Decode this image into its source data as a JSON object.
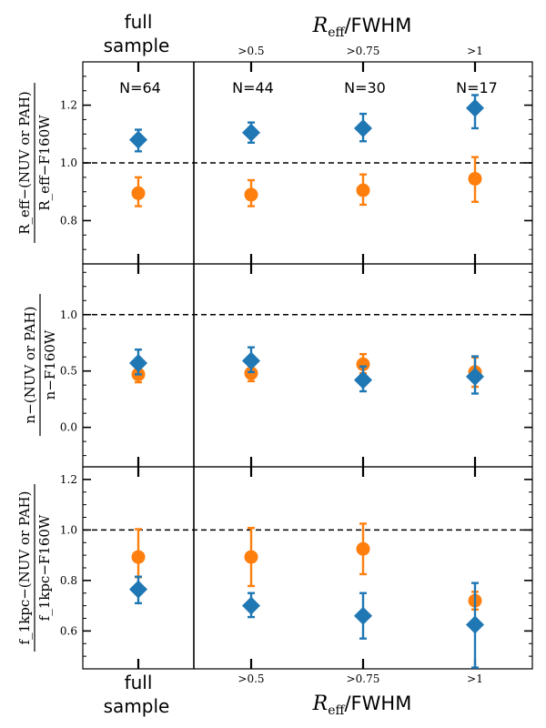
{
  "colors": {
    "blue": "#1f77b4",
    "orange": "#ff7f0e",
    "frame": "#000000"
  },
  "top_axis": {
    "column_label_line1": "full",
    "column_label_line2": "sample",
    "title_prefix": "R",
    "title_sub": "eff",
    "title_suffix": "/FWHM",
    "bins": [
      ">0.5",
      ">0.75",
      ">1"
    ]
  },
  "bottom_axis": {
    "column_label_line1": "full",
    "column_label_line2": "sample",
    "title_prefix": "R",
    "title_sub": "eff",
    "title_suffix": "/FWHM",
    "bins": [
      ">0.5",
      ">0.75",
      ">1"
    ]
  },
  "counts": [
    "N=64",
    "N=44",
    "N=30",
    "N=17"
  ],
  "chart_data": [
    {
      "type": "scatter",
      "panel": "top",
      "ylabel_numerator": "R_eff−(NUV or PAH)",
      "ylabel_denominator": "R_eff−F160W",
      "ylim": [
        0.65,
        1.35
      ],
      "yticks": [
        "0.8",
        "1.0",
        "1.2"
      ],
      "ytick_values": [
        0.8,
        1.0,
        1.2
      ],
      "reference_line": 1.0,
      "categories": [
        "full sample",
        ">0.5",
        ">0.75",
        ">1"
      ],
      "series": [
        {
          "name": "diamond",
          "color": "blue",
          "marker": "diamond",
          "values": [
            1.08,
            1.105,
            1.12,
            1.19
          ],
          "err_low": [
            0.04,
            0.035,
            0.045,
            0.07
          ],
          "err_high": [
            0.035,
            0.035,
            0.05,
            0.045
          ]
        },
        {
          "name": "circle",
          "color": "orange",
          "marker": "circle",
          "values": [
            0.895,
            0.89,
            0.905,
            0.945
          ],
          "err_low": [
            0.045,
            0.04,
            0.05,
            0.08
          ],
          "err_high": [
            0.055,
            0.05,
            0.055,
            0.075
          ]
        }
      ]
    },
    {
      "type": "scatter",
      "panel": "middle",
      "ylabel_numerator": "n−(NUV or PAH)",
      "ylabel_denominator": "n−F160W",
      "ylim": [
        -0.35,
        1.45
      ],
      "yticks": [
        "0.0",
        "0.5",
        "1.0"
      ],
      "ytick_values": [
        0.0,
        0.5,
        1.0
      ],
      "reference_line": 1.0,
      "categories": [
        "full sample",
        ">0.5",
        ">0.75",
        ">1"
      ],
      "series": [
        {
          "name": "diamond",
          "color": "blue",
          "marker": "diamond",
          "values": [
            0.57,
            0.59,
            0.42,
            0.45
          ],
          "err_low": [
            0.1,
            0.1,
            0.1,
            0.15
          ],
          "err_high": [
            0.12,
            0.12,
            0.12,
            0.18
          ]
        },
        {
          "name": "circle",
          "color": "orange",
          "marker": "circle",
          "values": [
            0.47,
            0.48,
            0.56,
            0.49
          ],
          "err_low": [
            0.07,
            0.07,
            0.08,
            0.13
          ],
          "err_high": [
            0.08,
            0.07,
            0.09,
            0.13
          ]
        }
      ]
    },
    {
      "type": "scatter",
      "panel": "bottom",
      "ylabel_numerator": "f_1kpc−(NUV or PAH)",
      "ylabel_denominator": "f_1kpc−F160W",
      "ylim": [
        0.45,
        1.25
      ],
      "yticks": [
        "0.6",
        "0.8",
        "1.0",
        "1.2"
      ],
      "ytick_values": [
        0.6,
        0.8,
        1.0,
        1.2
      ],
      "reference_line": 1.0,
      "categories": [
        "full sample",
        ">0.5",
        ">0.75",
        ">1"
      ],
      "series": [
        {
          "name": "diamond",
          "color": "blue",
          "marker": "diamond",
          "values": [
            0.765,
            0.7,
            0.66,
            0.625
          ],
          "err_low": [
            0.055,
            0.045,
            0.09,
            0.17
          ],
          "err_high": [
            0.05,
            0.05,
            0.09,
            0.165
          ]
        },
        {
          "name": "circle",
          "color": "orange",
          "marker": "circle",
          "values": [
            0.893,
            0.893,
            0.925,
            0.72
          ],
          "err_low": [
            0.08,
            0.115,
            0.1,
            0.035
          ],
          "err_high": [
            0.11,
            0.115,
            0.1,
            0.035
          ]
        }
      ]
    }
  ]
}
